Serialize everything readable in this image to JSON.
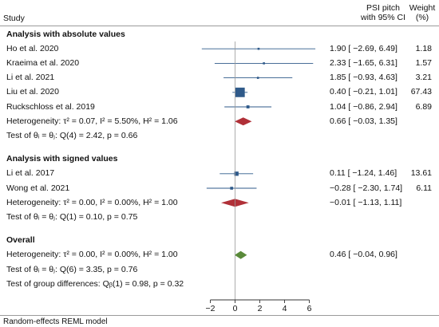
{
  "header": {
    "study": "Study",
    "effect_line1": "PSI pitch",
    "effect_line2": "with 95% CI",
    "weight_line1": "Weight",
    "weight_line2": "(%)"
  },
  "footer": "Random-effects REML model",
  "chart_data": {
    "type": "forest",
    "xlim": [
      -3,
      7
    ],
    "xticks": [
      -2,
      0,
      2,
      4,
      6
    ],
    "rows": [
      {
        "kind": "group",
        "label": "Analysis with absolute values"
      },
      {
        "kind": "study",
        "label": "Ho et al. 2020",
        "est": 1.9,
        "lo": -2.69,
        "hi": 6.49,
        "ci": "1.90 [ −2.69, 6.49]",
        "weight": "1.18",
        "w": 1.18
      },
      {
        "kind": "study",
        "label": "Kraeima et al. 2020",
        "est": 2.33,
        "lo": -1.65,
        "hi": 6.31,
        "ci": "2.33 [ −1.65, 6.31]",
        "weight": "1.57",
        "w": 1.57
      },
      {
        "kind": "study",
        "label": "Li et al. 2021",
        "est": 1.85,
        "lo": -0.93,
        "hi": 4.63,
        "ci": "1.85 [ −0.93, 4.63]",
        "weight": "3.21",
        "w": 3.21
      },
      {
        "kind": "study",
        "label": "Liu et al. 2020",
        "est": 0.4,
        "lo": -0.21,
        "hi": 1.01,
        "ci": "0.40 [ −0.21, 1.01]",
        "weight": "67.43",
        "w": 67.43
      },
      {
        "kind": "study",
        "label": "Ruckschloss et al. 2019",
        "est": 1.04,
        "lo": -0.86,
        "hi": 2.94,
        "ci": "1.04 [ −0.86, 2.94]",
        "weight": "6.89",
        "w": 6.89
      },
      {
        "kind": "summary",
        "label": "Heterogeneity: τ² = 0.07, I² = 5.50%, H² = 1.06",
        "est": 0.66,
        "lo": -0.03,
        "hi": 1.35,
        "ci": "0.66 [ −0.03, 1.35]",
        "color": "#b03038"
      },
      {
        "kind": "text",
        "label": "Test of θᵢ = θⱼ: Q(4) = 2.42, p = 0.66"
      },
      {
        "kind": "gap"
      },
      {
        "kind": "group",
        "label": "Analysis with signed values"
      },
      {
        "kind": "study",
        "label": "Li et al. 2017",
        "est": 0.11,
        "lo": -1.24,
        "hi": 1.46,
        "ci": "0.11 [ −1.24, 1.46]",
        "weight": "13.61",
        "w": 13.61
      },
      {
        "kind": "study",
        "label": "Wong et al. 2021",
        "est": -0.28,
        "lo": -2.3,
        "hi": 1.74,
        "ci": "−0.28 [ −2.30, 1.74]",
        "weight": "6.11",
        "w": 6.11
      },
      {
        "kind": "summary",
        "label": "Heterogeneity: τ² = 0.00, I² = 0.00%, H² = 1.00",
        "est": -0.01,
        "lo": -1.13,
        "hi": 1.11,
        "ci": "−0.01 [ −1.13, 1.11]",
        "color": "#b03038"
      },
      {
        "kind": "text",
        "label": "Test of θᵢ = θⱼ: Q(1) = 0.10, p = 0.75"
      },
      {
        "kind": "gap"
      },
      {
        "kind": "group",
        "label": "Overall"
      },
      {
        "kind": "summary",
        "label": "Heterogeneity: τ² = 0.00, I² = 0.00%, H² = 1.00",
        "est": 0.46,
        "lo": -0.04,
        "hi": 0.96,
        "ci": "0.46 [ −0.04, 0.96]",
        "color": "#5a8a3a"
      },
      {
        "kind": "text",
        "label": "Test of θᵢ = θⱼ: Q(6) = 3.35, p = 0.76"
      },
      {
        "kind": "text",
        "label": "Test of group differences: Qᵦ(1) = 0.98, p = 0.32"
      }
    ]
  },
  "colors": {
    "marker": "#2f5a8a",
    "ci_line": "#2f5a8a"
  }
}
